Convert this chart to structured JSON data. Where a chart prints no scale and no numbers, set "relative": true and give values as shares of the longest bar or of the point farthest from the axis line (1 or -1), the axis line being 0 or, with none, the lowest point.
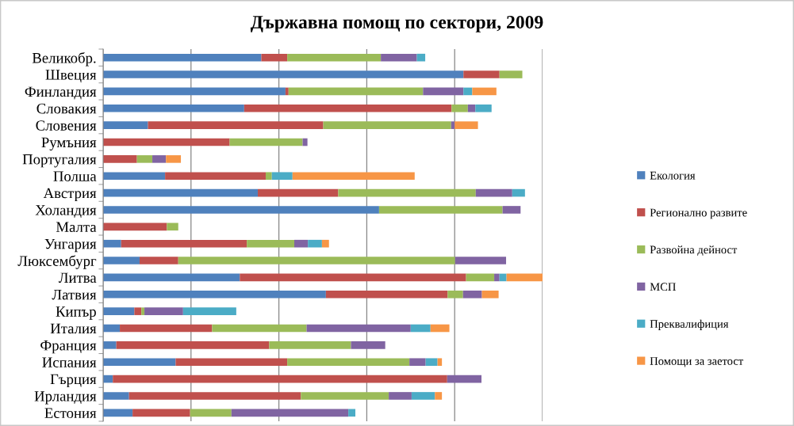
{
  "chart_data": {
    "type": "bar",
    "orientation": "horizontal",
    "stacked": true,
    "relative": true,
    "title": "Държавна помощ по сектори, 2009",
    "categories": [
      "Великобр.",
      "Швеция",
      "Финландия",
      "Словакия",
      "Словения",
      "Румъния",
      "Португалия",
      "Полша",
      "Австрия",
      "Холандия",
      "Малта",
      "Унгария",
      "Люксембург",
      "Литва",
      "Латвия",
      "Кипър",
      "Италия",
      "Франция",
      "Испания",
      "Гърция",
      "Ирландия",
      "Естония"
    ],
    "series": [
      {
        "name": "Екология",
        "color": "#4f81bd",
        "values": [
          0.36,
          0.82,
          0.415,
          0.321,
          0.102,
          null,
          null,
          0.141,
          0.352,
          0.628,
          null,
          0.041,
          0.083,
          0.311,
          0.507,
          0.071,
          0.038,
          0.03,
          0.165,
          0.022,
          0.059,
          0.067
        ]
      },
      {
        "name": "Регионално развите",
        "color": "#c0504d",
        "values": [
          0.059,
          0.082,
          0.007,
          0.472,
          0.399,
          0.288,
          0.077,
          0.229,
          0.183,
          null,
          0.145,
          0.286,
          0.088,
          0.515,
          0.277,
          0.016,
          0.21,
          0.348,
          0.254,
          0.761,
          0.391,
          0.131
        ]
      },
      {
        "name": "Развойна дейност",
        "color": "#9bbb59",
        "values": [
          0.213,
          0.052,
          0.306,
          0.037,
          0.291,
          0.166,
          0.035,
          0.014,
          0.313,
          0.281,
          0.026,
          0.108,
          0.63,
          0.064,
          0.035,
          0.007,
          0.215,
          0.186,
          0.278,
          null,
          0.2,
          0.094
        ]
      },
      {
        "name": "МСП",
        "color": "#8064a2",
        "values": [
          0.082,
          null,
          0.092,
          0.017,
          0.008,
          0.011,
          0.031,
          null,
          0.083,
          0.041,
          null,
          0.031,
          0.116,
          0.012,
          0.043,
          0.088,
          0.237,
          0.078,
          0.037,
          0.078,
          0.052,
          0.266
        ]
      },
      {
        "name": "Преквалифиция",
        "color": "#4bacc6",
        "values": [
          0.019,
          null,
          0.02,
          0.037,
          null,
          null,
          null,
          0.047,
          0.029,
          null,
          null,
          0.032,
          null,
          0.016,
          null,
          0.121,
          0.045,
          null,
          0.027,
          null,
          0.053,
          0.016
        ]
      },
      {
        "name": "Помощи за заетост",
        "color": "#f79646",
        "values": [
          null,
          null,
          0.055,
          null,
          0.053,
          null,
          0.034,
          0.278,
          null,
          null,
          null,
          0.016,
          null,
          0.082,
          0.038,
          null,
          0.043,
          null,
          0.01,
          null,
          0.016,
          null
        ]
      }
    ],
    "grid": "x",
    "legend": "right"
  }
}
